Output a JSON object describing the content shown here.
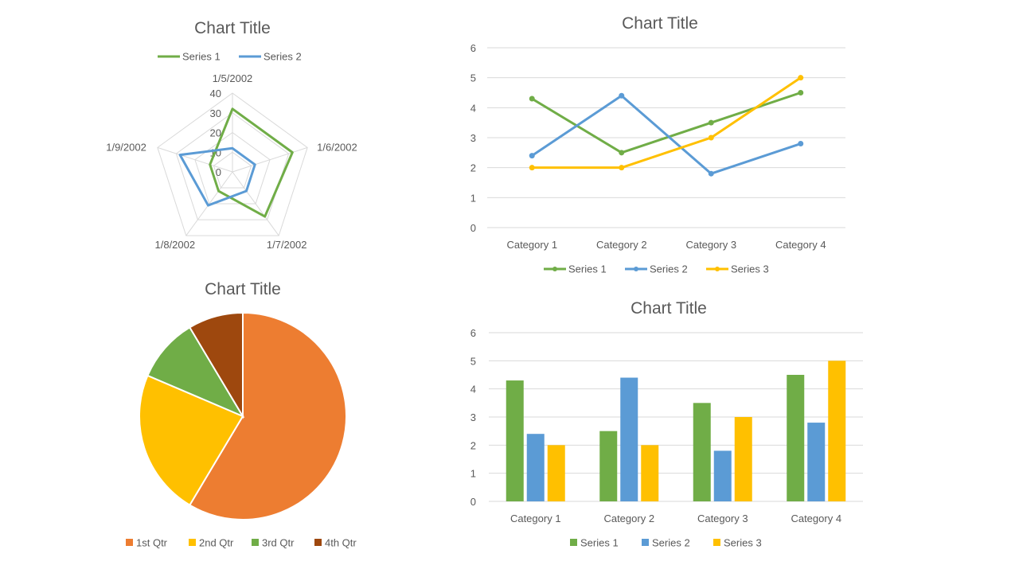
{
  "colors": {
    "green": "#70ad47",
    "blue": "#5b9bd5",
    "yellow": "#ffc000",
    "orange": "#ed7d31",
    "brown": "#9e480e",
    "text": "#595959",
    "grid": "#d9d9d9"
  },
  "chart_data": [
    {
      "type": "radar",
      "title": "Chart Title",
      "categories": [
        "1/5/2002",
        "1/6/2002",
        "1/7/2002",
        "1/8/2002",
        "1/9/2002"
      ],
      "axis_ticks": [
        "0",
        "10",
        "20",
        "30",
        "40"
      ],
      "rlim": [
        0,
        40
      ],
      "series": [
        {
          "name": "Series 1",
          "color": "green",
          "values": [
            32,
            32,
            28,
            12,
            12
          ]
        },
        {
          "name": "Series 2",
          "color": "blue",
          "values": [
            12,
            12,
            12,
            21,
            28
          ]
        }
      ],
      "legend": "top"
    },
    {
      "type": "line",
      "title": "Chart Title",
      "categories": [
        "Category 1",
        "Category 2",
        "Category 3",
        "Category 4"
      ],
      "y_ticks": [
        "0",
        "1",
        "2",
        "3",
        "4",
        "5",
        "6"
      ],
      "ylim": [
        0,
        6
      ],
      "series": [
        {
          "name": "Series 1",
          "color": "green",
          "values": [
            4.3,
            2.5,
            3.5,
            4.5
          ]
        },
        {
          "name": "Series 2",
          "color": "blue",
          "values": [
            2.4,
            4.4,
            1.8,
            2.8
          ]
        },
        {
          "name": "Series 3",
          "color": "yellow",
          "values": [
            2,
            2,
            3,
            5
          ]
        }
      ],
      "legend": "bottom"
    },
    {
      "type": "pie",
      "title": "Chart Title",
      "labels": [
        "1st Qtr",
        "2nd Qtr",
        "3rd Qtr",
        "4th Qtr"
      ],
      "values": [
        8.2,
        3.2,
        1.4,
        1.2
      ],
      "colors": [
        "orange",
        "yellow",
        "green",
        "brown"
      ],
      "legend": "bottom"
    },
    {
      "type": "bar",
      "title": "Chart Title",
      "categories": [
        "Category 1",
        "Category 2",
        "Category 3",
        "Category 4"
      ],
      "y_ticks": [
        "0",
        "1",
        "2",
        "3",
        "4",
        "5",
        "6"
      ],
      "ylim": [
        0,
        6
      ],
      "series": [
        {
          "name": "Series 1",
          "color": "green",
          "values": [
            4.3,
            2.5,
            3.5,
            4.5
          ]
        },
        {
          "name": "Series 2",
          "color": "blue",
          "values": [
            2.4,
            4.4,
            1.8,
            2.8
          ]
        },
        {
          "name": "Series 3",
          "color": "yellow",
          "values": [
            2,
            2,
            3,
            5
          ]
        }
      ],
      "legend": "bottom"
    }
  ]
}
